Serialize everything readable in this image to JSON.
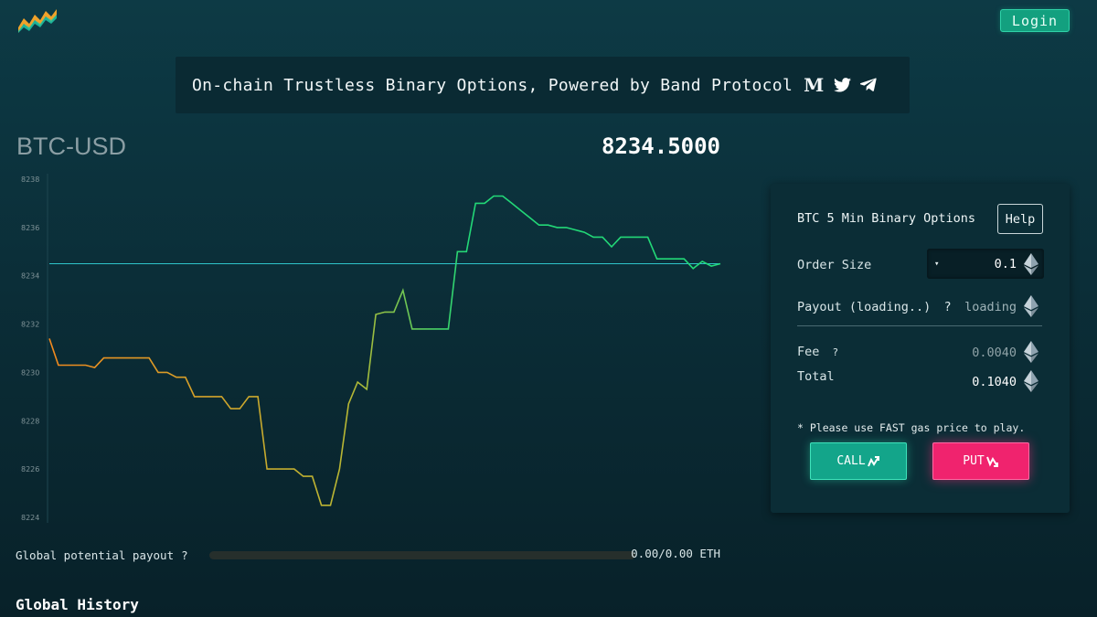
{
  "header": {
    "logo_icon": "zigzag-logo-icon",
    "login_label": "Login"
  },
  "banner": {
    "text": "On-chain Trustless Binary Options, Powered by Band Protocol",
    "icons": [
      "medium-icon",
      "twitter-icon",
      "telegram-icon"
    ],
    "medium_glyph": "M"
  },
  "market": {
    "pair": "BTC-USD",
    "price": "8234.5000"
  },
  "chart_data": {
    "type": "line",
    "title": "",
    "xlabel": "",
    "ylabel": "",
    "ylim": [
      8224,
      8238
    ],
    "yticks": [
      "8238",
      "8236",
      "8234",
      "8232",
      "8230",
      "8228",
      "8226",
      "8224"
    ],
    "reference_line": 8234.5,
    "x": [
      0,
      1,
      2,
      3,
      4,
      5,
      6,
      7,
      8,
      9,
      10,
      11,
      12,
      13,
      14,
      15,
      16,
      17,
      18,
      19,
      20,
      21,
      22,
      23,
      24,
      25,
      26,
      27,
      28,
      29,
      30,
      31,
      32,
      33,
      34,
      35,
      36,
      37,
      38,
      39,
      40,
      41,
      42,
      43,
      44,
      45,
      46,
      47,
      48,
      49,
      50,
      51,
      52,
      53,
      54,
      55,
      56,
      57,
      58,
      59,
      60,
      61,
      62,
      63,
      64,
      65,
      66,
      67,
      68,
      69,
      70,
      71,
      72,
      73,
      74
    ],
    "values": [
      8231.4,
      8230.3,
      8230.3,
      8230.3,
      8230.3,
      8230.2,
      8230.6,
      8230.6,
      8230.6,
      8230.6,
      8230.6,
      8230.6,
      8230.0,
      8230.0,
      8229.8,
      8229.8,
      8229.0,
      8229.0,
      8229.0,
      8229.0,
      8228.5,
      8228.5,
      8229.0,
      8229.0,
      8226.0,
      8226.0,
      8226.0,
      8226.0,
      8225.7,
      8225.7,
      8224.5,
      8224.5,
      8226.0,
      8228.7,
      8229.6,
      8229.3,
      8232.4,
      8232.5,
      8232.5,
      8233.4,
      8231.8,
      8231.8,
      8231.8,
      8231.8,
      8231.8,
      8235.0,
      8235.0,
      8237.0,
      8237.0,
      8237.3,
      8237.3,
      8237.0,
      8236.7,
      8236.4,
      8236.1,
      8236.1,
      8236.0,
      8236.0,
      8235.9,
      8235.8,
      8235.6,
      8235.6,
      8235.2,
      8235.6,
      8235.6,
      8235.6,
      8235.6,
      8234.7,
      8234.7,
      8234.7,
      8234.7,
      8234.3,
      8234.6,
      8234.4,
      8234.5
    ],
    "grid": false,
    "legend": "none",
    "colors": {
      "start": "#f28a1e",
      "mid": "#b7b834",
      "end": "#22d877",
      "reference": "#2ec4c9"
    }
  },
  "payout": {
    "label": "Global potential payout",
    "help": "?",
    "fraction": 0,
    "amount": "0.00/0.00 ETH"
  },
  "history": {
    "title": "Global History"
  },
  "panel": {
    "title": "BTC 5 Min Binary Options",
    "help_label": "Help",
    "order_size_label": "Order Size",
    "order_size_value": "0.1",
    "dropdown_arrow": "▾",
    "payout_label": "Payout (loading..)",
    "payout_help": "?",
    "payout_value": "loading",
    "fee_label": "Fee",
    "fee_help": "?",
    "fee_value": "0.0040",
    "total_label": "Total",
    "total_value": "0.1040",
    "note": "* Please use FAST gas price to play.",
    "call_label": "CALL",
    "put_label": "PUT",
    "eth_icon": "ethereum-icon"
  }
}
